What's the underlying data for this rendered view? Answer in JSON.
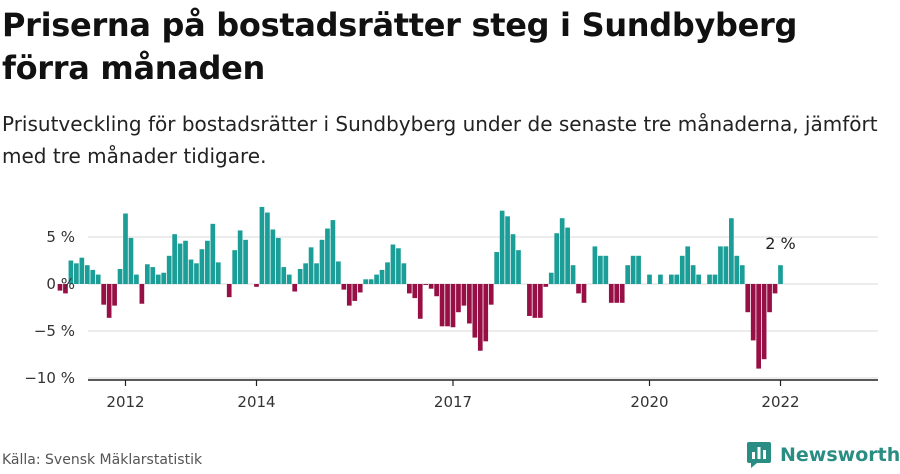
{
  "header": {
    "title": "Priserna på bostadsrätter steg i Sundbyberg förra månaden",
    "subtitle": "Prisutveckling för bostadsrätter i Sundbyberg under de senaste tre månaderna, jämfört med tre månader tidigare."
  },
  "footer": {
    "source": "Källa: Svensk Mäklarstatistik",
    "brand": "Newsworthy"
  },
  "colors": {
    "positive": "#1b9e97",
    "negative": "#970f45",
    "grid": "#d9d9d9",
    "brand": "#2a8d83"
  },
  "chart_data": {
    "type": "bar",
    "title": "",
    "xlabel": "",
    "ylabel": "",
    "ylim": [
      -10.5,
      9
    ],
    "y_ticks": [
      5,
      0,
      -5,
      -10
    ],
    "y_tick_labels": [
      "5 %",
      "0 %",
      "−5 %",
      "−10 %"
    ],
    "x_tick_labels": [
      "2012",
      "2014",
      "2017",
      "2020",
      "2022"
    ],
    "x_tick_positions": [
      2012.0,
      2014.0,
      2017.0,
      2020.0,
      2022.0
    ],
    "start": 2011.0,
    "step": 0.083333,
    "end_label": "2 %",
    "values": [
      -0.7,
      -1.0,
      2.5,
      2.2,
      2.8,
      2.0,
      1.5,
      1.0,
      -2.2,
      -3.6,
      -2.3,
      1.6,
      7.5,
      4.9,
      1.0,
      -2.1,
      2.1,
      1.8,
      1.0,
      1.2,
      3.0,
      5.3,
      4.3,
      4.6,
      2.6,
      2.2,
      3.7,
      4.6,
      6.4,
      2.3,
      0.0,
      -1.4,
      3.6,
      5.7,
      4.7,
      0.0,
      -0.3,
      8.2,
      7.6,
      5.8,
      4.9,
      1.8,
      1.0,
      -0.8,
      1.6,
      2.2,
      3.9,
      2.2,
      4.7,
      5.9,
      6.8,
      2.4,
      -0.6,
      -2.3,
      -1.8,
      -0.9,
      0.5,
      0.5,
      1.0,
      1.5,
      2.3,
      4.2,
      3.8,
      2.2,
      -1.0,
      -1.5,
      -3.7,
      -0.1,
      -0.5,
      -1.3,
      -4.5,
      -4.5,
      -4.6,
      -3.0,
      -2.3,
      -4.2,
      -5.7,
      -7.1,
      -6.1,
      -2.2,
      3.4,
      7.8,
      7.2,
      5.3,
      3.6,
      0.0,
      -3.4,
      -3.6,
      -3.6,
      -0.3,
      1.2,
      5.4,
      7.0,
      6.0,
      2.0,
      -1.0,
      -2.0,
      0.0,
      4.0,
      3.0,
      3.0,
      -2.0,
      -2.0,
      -2.0,
      2.0,
      3.0,
      3.0,
      0.0,
      1.0,
      0.0,
      1.0,
      0.0,
      1.0,
      1.0,
      3.0,
      4.0,
      2.0,
      1.0,
      0.0,
      1.0,
      1.0,
      4.0,
      4.0,
      7.0,
      3.0,
      2.0,
      -3.0,
      -6.0,
      -9.0,
      -8.0,
      -3.0,
      -1.0,
      2.0
    ]
  }
}
